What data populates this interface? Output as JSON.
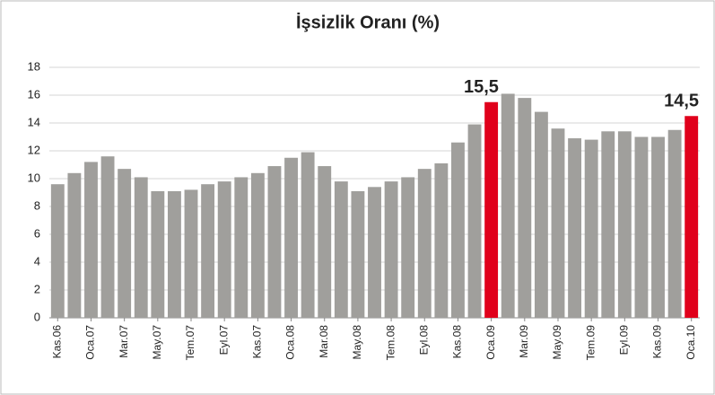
{
  "chart_data": {
    "type": "bar",
    "title": "İşsizlik Oranı (%)",
    "categories": [
      "Kas.06",
      null,
      "Oca.07",
      null,
      "Mar.07",
      null,
      "May.07",
      null,
      "Tem.07",
      null,
      "Eyl.07",
      null,
      "Kas.07",
      null,
      "Oca.08",
      null,
      "Mar.08",
      null,
      "May.08",
      null,
      "Tem.08",
      null,
      "Eyl.08",
      null,
      "Kas.08",
      null,
      "Oca.09",
      null,
      "Mar.09",
      null,
      "May.09",
      null,
      "Tem.09",
      null,
      "Eyl.09",
      null,
      "Kas.09",
      null,
      "Oca.10"
    ],
    "values": [
      9.6,
      10.4,
      11.2,
      11.6,
      10.7,
      10.1,
      9.1,
      9.1,
      9.2,
      9.6,
      9.8,
      10.1,
      10.4,
      10.9,
      11.5,
      11.9,
      10.9,
      9.8,
      9.1,
      9.4,
      9.8,
      10.1,
      10.7,
      11.1,
      12.6,
      13.9,
      15.5,
      16.1,
      15.8,
      14.8,
      13.6,
      12.9,
      12.8,
      13.4,
      13.4,
      13.0,
      13.0,
      13.5,
      14.5
    ],
    "value_labels": [
      null,
      null,
      null,
      null,
      null,
      null,
      null,
      null,
      null,
      null,
      null,
      null,
      null,
      null,
      null,
      null,
      null,
      null,
      null,
      null,
      null,
      null,
      null,
      null,
      null,
      null,
      "15,5",
      null,
      null,
      null,
      null,
      null,
      null,
      null,
      null,
      null,
      null,
      null,
      "14,5"
    ],
    "colors": [
      "#a09f9c",
      "#a09f9c",
      "#a09f9c",
      "#a09f9c",
      "#a09f9c",
      "#a09f9c",
      "#a09f9c",
      "#a09f9c",
      "#a09f9c",
      "#a09f9c",
      "#a09f9c",
      "#a09f9c",
      "#a09f9c",
      "#a09f9c",
      "#a09f9c",
      "#a09f9c",
      "#a09f9c",
      "#a09f9c",
      "#a09f9c",
      "#a09f9c",
      "#a09f9c",
      "#a09f9c",
      "#a09f9c",
      "#a09f9c",
      "#a09f9c",
      "#a09f9c",
      "#e0001b",
      "#a09f9c",
      "#a09f9c",
      "#a09f9c",
      "#a09f9c",
      "#a09f9c",
      "#a09f9c",
      "#a09f9c",
      "#a09f9c",
      "#a09f9c",
      "#a09f9c",
      "#a09f9c",
      "#e0001b"
    ],
    "ylim": [
      0,
      18
    ],
    "yticks": [
      0,
      2,
      4,
      6,
      8,
      10,
      12,
      14,
      16,
      18
    ],
    "grid": true
  }
}
